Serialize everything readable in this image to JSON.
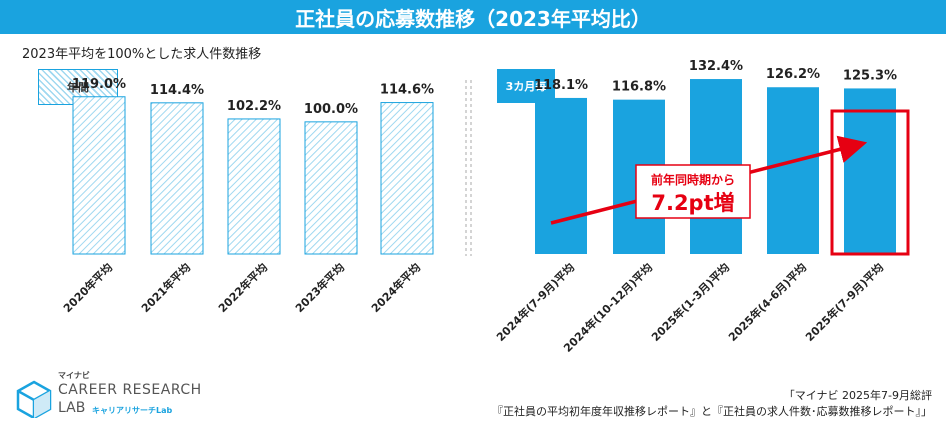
{
  "title": "正社員の応募数推移（2023年平均比）",
  "subtitle": "2023年平均を100%とした求人件数推移",
  "legend": {
    "annual": "年間",
    "quarterly": "3カ月毎"
  },
  "colors": {
    "accent": "#1aa3df",
    "hatch": "#9fd8f0",
    "highlight": "#e60012"
  },
  "chart_data": {
    "type": "bar",
    "title": "正社員の応募数推移（2023年平均比）",
    "ylabel": "2023年平均を100%とした求人件数推移",
    "ylim": [
      0,
      140
    ],
    "series": [
      {
        "name": "年間",
        "style": "hatched",
        "categories": [
          "2020年平均",
          "2021年平均",
          "2022年平均",
          "2023年平均",
          "2024年平均"
        ],
        "values": [
          119.0,
          114.4,
          102.2,
          100.0,
          114.6
        ],
        "labels": [
          "119.0%",
          "114.4%",
          "102.2%",
          "100.0%",
          "114.6%"
        ]
      },
      {
        "name": "3カ月毎",
        "style": "solid",
        "categories": [
          "2024年(7-9月)平均",
          "2024年(10-12月)平均",
          "2025年(1-3月)平均",
          "2025年(4-6月)平均",
          "2025年(7-9月)平均"
        ],
        "values": [
          118.1,
          116.8,
          132.4,
          126.2,
          125.3
        ],
        "labels": [
          "118.1%",
          "116.8%",
          "132.4%",
          "126.2%",
          "125.3%"
        ]
      }
    ],
    "annotation": {
      "line1": "前年同時期から",
      "line2": "7.2pt増",
      "highlighted_category": "2025年(7-9月)平均"
    }
  },
  "logo": {
    "small": "マイナビ",
    "main": "CAREER RESEARCH",
    "lab": "LAB",
    "kana": "キャリアリサーチLab"
  },
  "source": {
    "line1": "「マイナビ 2025年7-9月総評",
    "line2": "『正社員の平均初年度年収推移レポート』と『正社員の求人件数･応募数推移レポート』」"
  }
}
